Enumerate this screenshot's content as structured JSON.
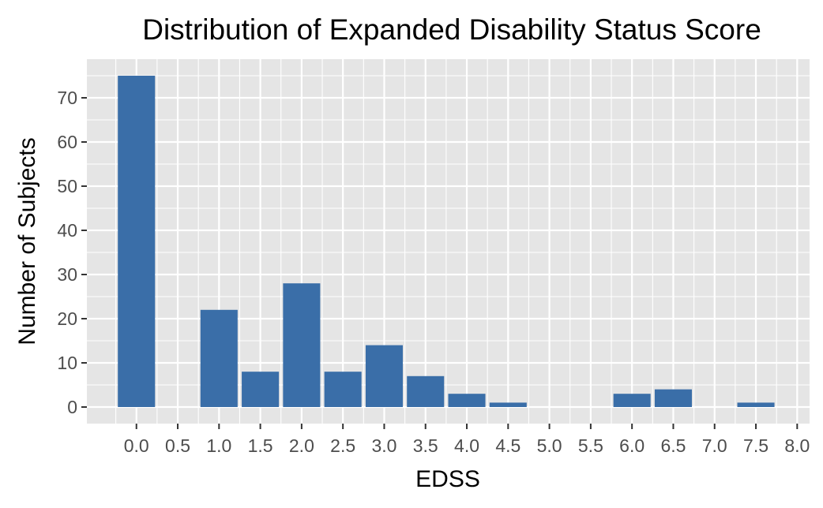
{
  "chart_data": {
    "type": "bar",
    "title": "Distribution of Expanded Disability Status Score",
    "xlabel": "EDSS",
    "ylabel": "Number of Subjects",
    "x": [
      0.0,
      1.0,
      1.5,
      2.0,
      2.5,
      3.0,
      3.5,
      4.0,
      4.5,
      6.0,
      6.5,
      7.5
    ],
    "values": [
      75,
      22,
      8,
      28,
      8,
      14,
      7,
      3,
      1,
      3,
      4,
      1
    ],
    "x_ticks": [
      "0.0",
      "0.5",
      "1.0",
      "1.5",
      "2.0",
      "2.5",
      "3.0",
      "3.5",
      "4.0",
      "4.5",
      "5.0",
      "5.5",
      "6.0",
      "6.5",
      "7.0",
      "7.5",
      "8.0"
    ],
    "y_ticks": [
      "0",
      "10",
      "20",
      "30",
      "40",
      "50",
      "60",
      "70"
    ],
    "xlim": [
      -0.6,
      8.15
    ],
    "ylim": [
      -3.75,
      78.75
    ],
    "bar_width": 0.45,
    "grid": true,
    "colors": {
      "bar": "#3a6ea8",
      "panel": "#e5e5e5",
      "grid": "#ffffff"
    }
  }
}
